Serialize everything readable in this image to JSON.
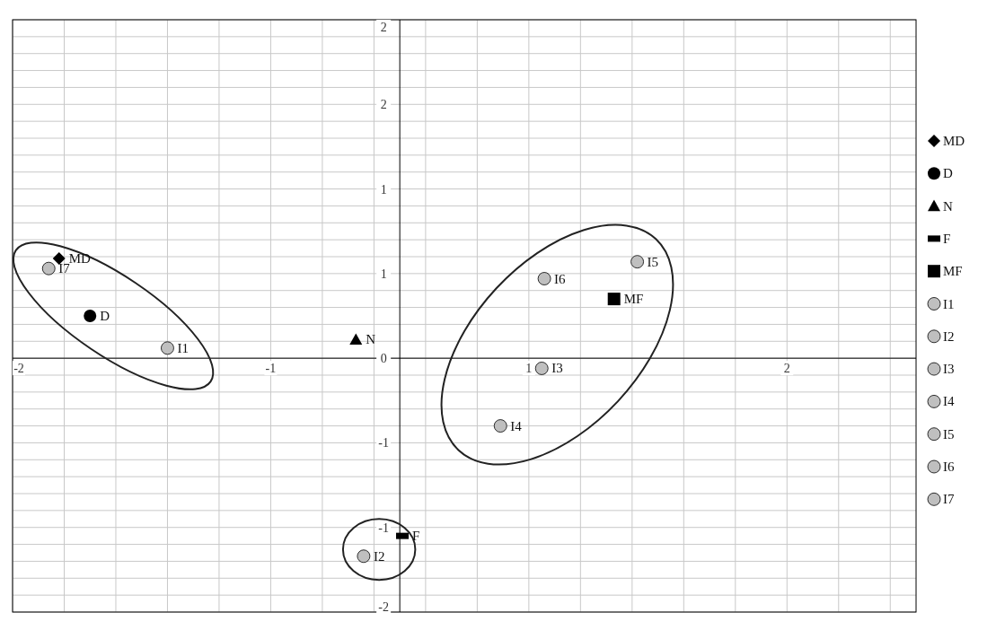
{
  "chart_data": {
    "type": "scatter",
    "series": [
      {
        "name": "MD",
        "color": "#000000",
        "marker": "diamond",
        "x": [
          -1.32
        ],
        "values": [
          0.59
        ]
      },
      {
        "name": "D",
        "color": "#000000",
        "marker": "circle",
        "x": [
          -1.2
        ],
        "values": [
          0.25
        ]
      },
      {
        "name": "N",
        "color": "#000000",
        "marker": "triangle",
        "x": [
          -0.17
        ],
        "values": [
          0.11
        ]
      },
      {
        "name": "F",
        "color": "#000000",
        "x": [
          0.01
        ],
        "values": [
          -1.05
        ]
      },
      {
        "name": "MF",
        "color": "#000000",
        "marker": "square",
        "x": [
          0.83
        ],
        "values": [
          0.35
        ]
      },
      {
        "name": "I1",
        "color": "#bfbfbf",
        "marker": "circle",
        "x": [
          -0.9
        ],
        "values": [
          0.06
        ]
      },
      {
        "name": "I2",
        "color": "#bfbfbf",
        "marker": "circle",
        "x": [
          -0.14
        ],
        "values": [
          -1.17
        ]
      },
      {
        "name": "I3",
        "color": "#bfbfbf",
        "marker": "circle",
        "x": [
          0.55
        ],
        "values": [
          -0.06
        ]
      },
      {
        "name": "I4",
        "color": "#bfbfbf",
        "marker": "circle",
        "x": [
          0.39
        ],
        "values": [
          -0.4
        ]
      },
      {
        "name": "I5",
        "color": "#bfbfbf",
        "marker": "circle",
        "x": [
          0.92
        ],
        "values": [
          0.57
        ]
      },
      {
        "name": "I6",
        "color": "#bfbfbf",
        "marker": "circle",
        "x": [
          0.56
        ],
        "values": [
          0.47
        ]
      },
      {
        "name": "I7",
        "color": "#bfbfbf",
        "marker": "circle",
        "x": [
          -1.36
        ],
        "values": [
          0.53
        ]
      }
    ],
    "xlim": [
      -1.5,
      2
    ],
    "xticks": [
      {
        "value": -1.5,
        "label": "-2"
      },
      {
        "value": -1.3,
        "label": null
      },
      {
        "value": -1.1,
        "label": null
      },
      {
        "value": -0.9,
        "label": null
      },
      {
        "value": -0.7,
        "label": null
      },
      {
        "value": -0.5,
        "label": "-1"
      },
      {
        "value": -0.3,
        "label": null
      },
      {
        "value": -0.1,
        "label": null
      },
      {
        "value": 0.1,
        "label": null
      },
      {
        "value": 0.3,
        "label": null
      },
      {
        "value": 0.5,
        "label": "1"
      },
      {
        "value": 0.7,
        "label": null
      },
      {
        "value": 0.9,
        "label": null
      },
      {
        "value": 1.1,
        "label": null
      },
      {
        "value": 1.3,
        "label": null
      },
      {
        "value": 1.5,
        "label": "2"
      },
      {
        "value": 1.7,
        "label": null
      },
      {
        "value": 1.9,
        "label": null
      }
    ],
    "ylim": [
      -1.5,
      2
    ],
    "yticks": [
      {
        "value": -1.5,
        "label": "-2"
      },
      {
        "value": -1.4,
        "label": null
      },
      {
        "value": -1.3,
        "label": null
      },
      {
        "value": -1.2,
        "label": null
      },
      {
        "value": -1.1,
        "label": null
      },
      {
        "value": -1,
        "label": "-1"
      },
      {
        "value": -0.9,
        "label": null
      },
      {
        "value": -0.8,
        "label": null
      },
      {
        "value": -0.7,
        "label": null
      },
      {
        "value": -0.6,
        "label": null
      },
      {
        "value": -0.5,
        "label": "-1"
      },
      {
        "value": -0.4,
        "label": null
      },
      {
        "value": -0.3,
        "label": null
      },
      {
        "value": -0.2,
        "label": null
      },
      {
        "value": -0.1,
        "label": null
      },
      0,
      {
        "value": 0.1,
        "label": null
      },
      {
        "value": 0.2,
        "label": null
      },
      {
        "value": 0.3,
        "label": null
      },
      {
        "value": 0.4,
        "label": null
      },
      {
        "value": 0.5,
        "label": "1"
      },
      {
        "value": 0.6,
        "label": null
      },
      {
        "value": 0.7,
        "label": null
      },
      {
        "value": 0.8,
        "label": null
      },
      {
        "value": 0.9,
        "label": null
      },
      {
        "value": 1,
        "label": "1"
      },
      {
        "value": 1.1,
        "label": null
      },
      {
        "value": 1.2,
        "label": null
      },
      {
        "value": 1.3,
        "label": null
      },
      {
        "value": 1.4,
        "label": null
      },
      {
        "value": 1.5,
        "label": "2"
      },
      {
        "value": 1.6,
        "label": null
      },
      {
        "value": 1.7,
        "label": null
      },
      {
        "value": 1.8,
        "label": null
      },
      {
        "value": 1.9,
        "label": null
      },
      {
        "value": 2,
        "label": "2"
      }
    ],
    "grid": true,
    "legend": "right"
  }
}
